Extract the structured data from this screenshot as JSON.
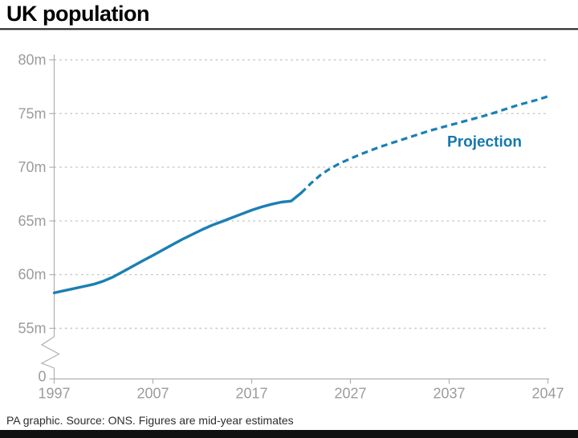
{
  "title": "UK population",
  "footer": "PA graphic. Source: ONS. Figures are mid-year estimates",
  "colors": {
    "line_blue": "#1b7fb5",
    "projection_text": "#1478ad",
    "axis_gray": "#b0b0b0",
    "grid_gray": "#c6c6c6",
    "tick_label_gray": "#9c9c9c",
    "title_black": "#000000",
    "footer_text": "#2e2e2e",
    "bottom_bar_black": "#101010"
  },
  "chart_data": {
    "type": "line",
    "title": "UK population",
    "xlabel": "",
    "ylabel": "",
    "grid": "dashed-horizontal",
    "axis_break": true,
    "ylim_display": [
      55,
      80
    ],
    "x_range": [
      1997,
      2047
    ],
    "x_ticks": [
      {
        "label": "1997",
        "year": 1997
      },
      {
        "label": "2007",
        "year": 2007
      },
      {
        "label": "2017",
        "year": 2017
      },
      {
        "label": "2027",
        "year": 2027
      },
      {
        "label": "2037",
        "year": 2037
      },
      {
        "label": "2047",
        "year": 2047
      }
    ],
    "y_ticks": [
      {
        "label": "80m",
        "v": 80
      },
      {
        "label": "75m",
        "v": 75
      },
      {
        "label": "70m",
        "v": 70
      },
      {
        "label": "65m",
        "v": 65
      },
      {
        "label": "60m",
        "v": 60
      },
      {
        "label": "55m",
        "v": 55
      }
    ],
    "y_zero_tick": {
      "label": "0"
    },
    "annotation": {
      "text": "Projection",
      "year": 2036.8,
      "value": 71.9
    },
    "series": [
      {
        "name": "Mid-year estimates",
        "style": "solid",
        "points": [
          [
            1997,
            58.3
          ],
          [
            1998,
            58.5
          ],
          [
            1999,
            58.7
          ],
          [
            2000,
            58.9
          ],
          [
            2001,
            59.1
          ],
          [
            2002,
            59.4
          ],
          [
            2003,
            59.8
          ],
          [
            2004,
            60.3
          ],
          [
            2005,
            60.8
          ],
          [
            2006,
            61.3
          ],
          [
            2007,
            61.8
          ],
          [
            2008,
            62.3
          ],
          [
            2009,
            62.8
          ],
          [
            2010,
            63.3
          ],
          [
            2011,
            63.75
          ],
          [
            2012,
            64.2
          ],
          [
            2013,
            64.6
          ],
          [
            2014,
            64.95
          ],
          [
            2015,
            65.3
          ],
          [
            2016,
            65.65
          ],
          [
            2017,
            66.0
          ],
          [
            2018,
            66.3
          ],
          [
            2019,
            66.55
          ],
          [
            2020,
            66.75
          ],
          [
            2021,
            66.85
          ],
          [
            2022,
            67.6
          ]
        ]
      },
      {
        "name": "Projection",
        "style": "dashed",
        "points": [
          [
            2022,
            67.6
          ],
          [
            2023,
            68.5
          ],
          [
            2024,
            69.3
          ],
          [
            2025,
            69.9
          ],
          [
            2026,
            70.4
          ],
          [
            2027,
            70.8
          ],
          [
            2028,
            71.2
          ],
          [
            2029,
            71.55
          ],
          [
            2030,
            71.9
          ],
          [
            2031,
            72.2
          ],
          [
            2032,
            72.5
          ],
          [
            2033,
            72.8
          ],
          [
            2034,
            73.1
          ],
          [
            2035,
            73.4
          ],
          [
            2036,
            73.65
          ],
          [
            2037,
            73.9
          ],
          [
            2038,
            74.15
          ],
          [
            2039,
            74.4
          ],
          [
            2040,
            74.65
          ],
          [
            2041,
            74.9
          ],
          [
            2042,
            75.2
          ],
          [
            2043,
            75.5
          ],
          [
            2044,
            75.8
          ],
          [
            2045,
            76.05
          ],
          [
            2046,
            76.3
          ],
          [
            2047,
            76.6
          ]
        ]
      }
    ]
  }
}
